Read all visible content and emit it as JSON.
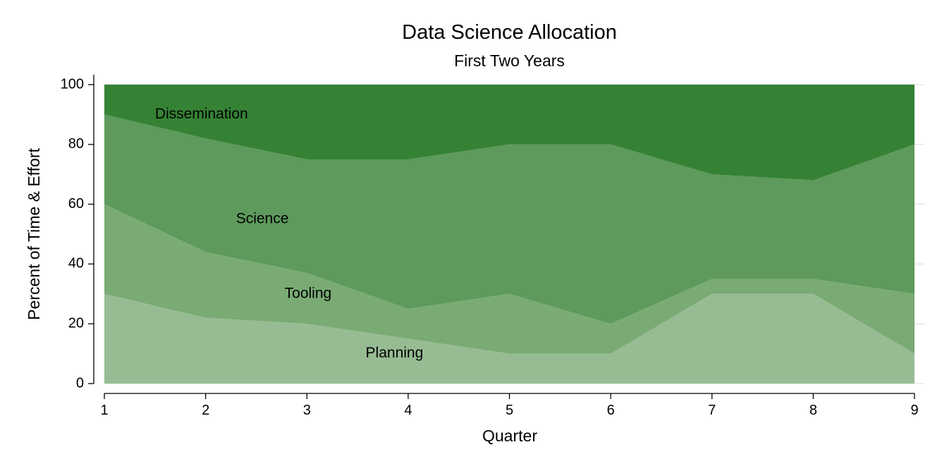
{
  "chart_data": {
    "type": "area",
    "title": "Data Science Allocation",
    "subtitle": "First Two Years",
    "xlabel": "Quarter",
    "ylabel": "Percent of Time & Effort",
    "x": [
      1,
      2,
      3,
      4,
      5,
      6,
      7,
      8,
      9
    ],
    "xlim": [
      1,
      9
    ],
    "ylim": [
      0,
      100
    ],
    "xticks": [
      "1",
      "2",
      "3",
      "4",
      "5",
      "6",
      "7",
      "8",
      "9"
    ],
    "yticks": [
      "0",
      "20",
      "40",
      "60",
      "80",
      "100"
    ],
    "grid": true,
    "stacked": true,
    "series": [
      {
        "name": "Planning",
        "values": [
          30,
          22,
          20,
          15,
          10,
          10,
          30,
          30,
          10
        ],
        "color": "#97bc93",
        "label_x": 3.58,
        "label_y": 10
      },
      {
        "name": "Tooling",
        "values": [
          30,
          22,
          17,
          10,
          20,
          10,
          5,
          5,
          20
        ],
        "color": "#7aab74",
        "label_x": 2.78,
        "label_y": 30
      },
      {
        "name": "Science",
        "values": [
          30,
          38,
          38,
          50,
          50,
          60,
          35,
          33,
          50
        ],
        "color": "#5d9a5b",
        "label_x": 2.3,
        "label_y": 55
      },
      {
        "name": "Dissemination",
        "values": [
          10,
          18,
          25,
          25,
          20,
          20,
          30,
          32,
          20
        ],
        "color": "#358235",
        "label_x": 1.5,
        "label_y": 90
      }
    ]
  }
}
